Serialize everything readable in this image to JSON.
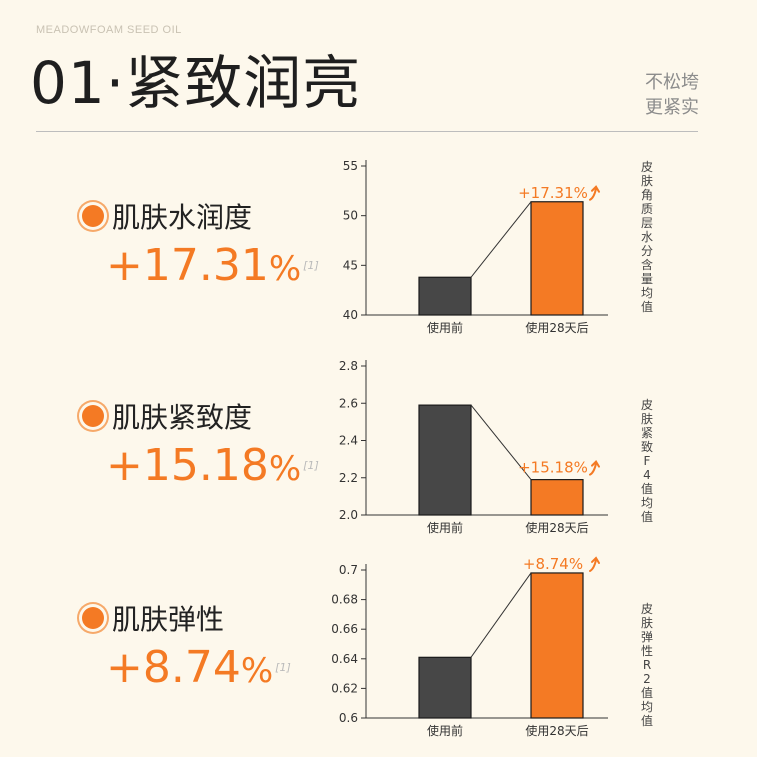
{
  "header": {
    "brand": "MEADOWFOAM SEED OIL",
    "title": "01·紧致润亮",
    "tagline_1": "不松垮",
    "tagline_2": "更紧实"
  },
  "metrics": [
    {
      "name": "肌肤水润度",
      "value": "+17.31",
      "unit": "%",
      "ref": "[1]"
    },
    {
      "name": "肌肤紧致度",
      "value": "+15.18",
      "unit": "%",
      "ref": "[1]"
    },
    {
      "name": "肌肤弹性",
      "value": "+8.74",
      "unit": "%",
      "ref": "[1]"
    }
  ],
  "colors": {
    "accent": "#f47a24",
    "dark_bar": "#474747",
    "background": "#fdf8ec"
  },
  "icons": {
    "arrow": "up-arrow-icon",
    "bullet": "orange-dot-icon"
  },
  "chart_data": [
    {
      "type": "bar",
      "categories": [
        "使用前",
        "使用28天后"
      ],
      "values": [
        43.8,
        51.4
      ],
      "ylabel": "皮肤角质层水分含量均值",
      "ylim": [
        40,
        55
      ],
      "yticks": [
        "40",
        "45",
        "50",
        "55"
      ],
      "annotation": "+17.31%",
      "grid": false
    },
    {
      "type": "bar",
      "categories": [
        "使用前",
        "使用28天后"
      ],
      "values": [
        2.59,
        2.19
      ],
      "ylabel": "皮肤紧致F4值均值",
      "ylim": [
        2.0,
        2.8
      ],
      "yticks": [
        "2.0",
        "2.2",
        "2.4",
        "2.6",
        "2.8"
      ],
      "annotation": "+15.18%",
      "grid": false
    },
    {
      "type": "bar",
      "categories": [
        "使用前",
        "使用28天后"
      ],
      "values": [
        0.641,
        0.698
      ],
      "ylabel": "皮肤弹性R2值均值",
      "ylim": [
        0.6,
        0.7
      ],
      "yticks": [
        "0.6",
        "0.62",
        "0.64",
        "0.66",
        "0.68",
        "0.7"
      ],
      "annotation": "+8.74%",
      "grid": false
    }
  ]
}
